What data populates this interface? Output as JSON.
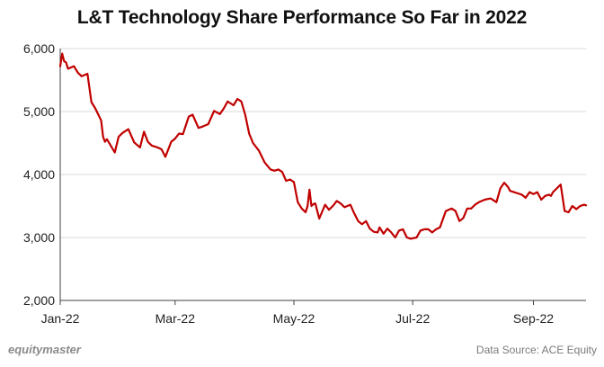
{
  "brand": "equitymaster",
  "source_note": "Data Source: ACE Equity",
  "colors": {
    "line": "#c00000",
    "grid": "#d9d9d9",
    "axis": "#404040",
    "tick_text": "#222222"
  },
  "chart_data": {
    "type": "line",
    "title": "L&T Technology Share Performance So Far in 2022",
    "xlabel": "",
    "ylabel": "",
    "ylim": [
      2000,
      6000
    ],
    "yticks": [
      2000,
      3000,
      4000,
      5000,
      6000
    ],
    "ytick_labels": [
      "2,000",
      "3,000",
      "4,000",
      "5,000",
      "6,000"
    ],
    "xlim": [
      "2022-01-03",
      "2022-09-30"
    ],
    "xticks": [
      "2022-01-03",
      "2022-03-03",
      "2022-05-03",
      "2022-07-03",
      "2022-09-03"
    ],
    "xtick_labels": [
      "Jan-22",
      "Mar-22",
      "May-22",
      "Jul-22",
      "Sep-22"
    ],
    "grid": "horizontal",
    "legend": "none",
    "series": [
      {
        "name": "",
        "x": [
          "2022-01-03",
          "2022-01-04",
          "2022-01-05",
          "2022-01-06",
          "2022-01-07",
          "2022-01-10",
          "2022-01-12",
          "2022-01-14",
          "2022-01-17",
          "2022-01-19",
          "2022-01-21",
          "2022-01-24",
          "2022-01-25",
          "2022-01-26",
          "2022-01-27",
          "2022-01-31",
          "2022-02-02",
          "2022-02-04",
          "2022-02-07",
          "2022-02-10",
          "2022-02-13",
          "2022-02-15",
          "2022-02-17",
          "2022-02-19",
          "2022-02-22",
          "2022-02-24",
          "2022-02-26",
          "2022-03-01",
          "2022-03-03",
          "2022-03-05",
          "2022-03-07",
          "2022-03-10",
          "2022-03-12",
          "2022-03-15",
          "2022-03-17",
          "2022-03-20",
          "2022-03-23",
          "2022-03-26",
          "2022-03-28",
          "2022-03-30",
          "2022-04-02",
          "2022-04-04",
          "2022-04-06",
          "2022-04-08",
          "2022-04-10",
          "2022-04-12",
          "2022-04-15",
          "2022-04-18",
          "2022-04-21",
          "2022-04-23",
          "2022-04-25",
          "2022-04-27",
          "2022-04-29",
          "2022-05-01",
          "2022-05-03",
          "2022-05-05",
          "2022-05-07",
          "2022-05-09",
          "2022-05-10",
          "2022-05-11",
          "2022-05-12",
          "2022-05-13",
          "2022-05-14",
          "2022-05-16",
          "2022-05-19",
          "2022-05-21",
          "2022-05-23",
          "2022-05-25",
          "2022-05-27",
          "2022-05-29",
          "2022-06-01",
          "2022-06-03",
          "2022-06-05",
          "2022-06-07",
          "2022-06-09",
          "2022-06-11",
          "2022-06-13",
          "2022-06-15",
          "2022-06-16",
          "2022-06-18",
          "2022-06-20",
          "2022-06-22",
          "2022-06-24",
          "2022-06-26",
          "2022-06-28",
          "2022-06-30",
          "2022-07-02",
          "2022-07-05",
          "2022-07-07",
          "2022-07-09",
          "2022-07-11",
          "2022-07-13",
          "2022-07-15",
          "2022-07-17",
          "2022-07-20",
          "2022-07-23",
          "2022-07-25",
          "2022-07-27",
          "2022-07-29",
          "2022-07-31",
          "2022-08-02",
          "2022-08-04",
          "2022-08-06",
          "2022-08-09",
          "2022-08-12",
          "2022-08-15",
          "2022-08-17",
          "2022-08-19",
          "2022-08-21",
          "2022-08-22",
          "2022-08-24",
          "2022-08-26",
          "2022-08-28",
          "2022-08-30",
          "2022-09-01",
          "2022-09-03",
          "2022-09-05",
          "2022-09-07",
          "2022-09-09",
          "2022-09-11",
          "2022-09-12",
          "2022-09-13",
          "2022-09-15",
          "2022-09-17",
          "2022-09-19",
          "2022-09-21",
          "2022-09-23",
          "2022-09-25",
          "2022-09-27",
          "2022-09-29",
          "2022-09-30"
        ],
        "y": [
          5720,
          5920,
          5800,
          5780,
          5680,
          5720,
          5620,
          5560,
          5600,
          5150,
          5050,
          4860,
          4600,
          4520,
          4560,
          4350,
          4600,
          4660,
          4720,
          4510,
          4430,
          4680,
          4520,
          4460,
          4430,
          4400,
          4280,
          4520,
          4570,
          4650,
          4640,
          4920,
          4950,
          4740,
          4760,
          4800,
          5010,
          4960,
          5050,
          5160,
          5100,
          5200,
          5160,
          4950,
          4650,
          4500,
          4380,
          4190,
          4080,
          4060,
          4080,
          4040,
          3900,
          3920,
          3880,
          3560,
          3460,
          3400,
          3500,
          3760,
          3500,
          3530,
          3540,
          3300,
          3520,
          3440,
          3500,
          3580,
          3540,
          3480,
          3520,
          3380,
          3260,
          3210,
          3260,
          3140,
          3090,
          3080,
          3160,
          3060,
          3140,
          3080,
          3000,
          3110,
          3130,
          3000,
          2980,
          3000,
          3110,
          3130,
          3130,
          3080,
          3130,
          3160,
          3420,
          3460,
          3420,
          3260,
          3310,
          3460,
          3460,
          3520,
          3560,
          3600,
          3620,
          3560,
          3780,
          3870,
          3800,
          3740,
          3720,
          3700,
          3680,
          3630,
          3720,
          3690,
          3720,
          3600,
          3660,
          3680,
          3660,
          3720,
          3780,
          3840,
          3420,
          3400,
          3500,
          3450,
          3500,
          3520,
          3510
        ]
      }
    ]
  }
}
